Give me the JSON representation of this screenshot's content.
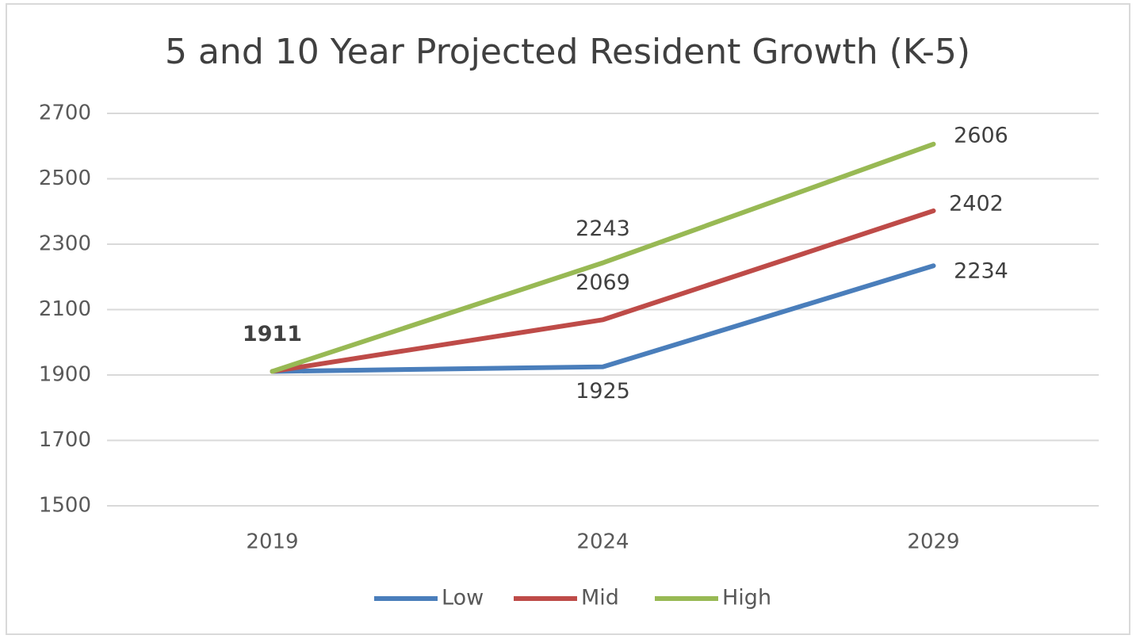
{
  "chart_data": {
    "type": "line",
    "title": "5 and 10 Year Projected Resident Growth (K-5)",
    "categories": [
      "2019",
      "2024",
      "2029"
    ],
    "series": [
      {
        "name": "Low",
        "color": "#4a7ebb",
        "values": [
          1911,
          1925,
          2234
        ]
      },
      {
        "name": "Mid",
        "color": "#be4b48",
        "values": [
          1911,
          2069,
          2402
        ]
      },
      {
        "name": "High",
        "color": "#98b954",
        "values": [
          1911,
          2243,
          2606
        ]
      }
    ],
    "ylim": [
      1500,
      2700
    ],
    "yticks": [
      1500,
      1700,
      1900,
      2100,
      2300,
      2500,
      2700
    ],
    "grid": true,
    "legend": "bottom"
  }
}
